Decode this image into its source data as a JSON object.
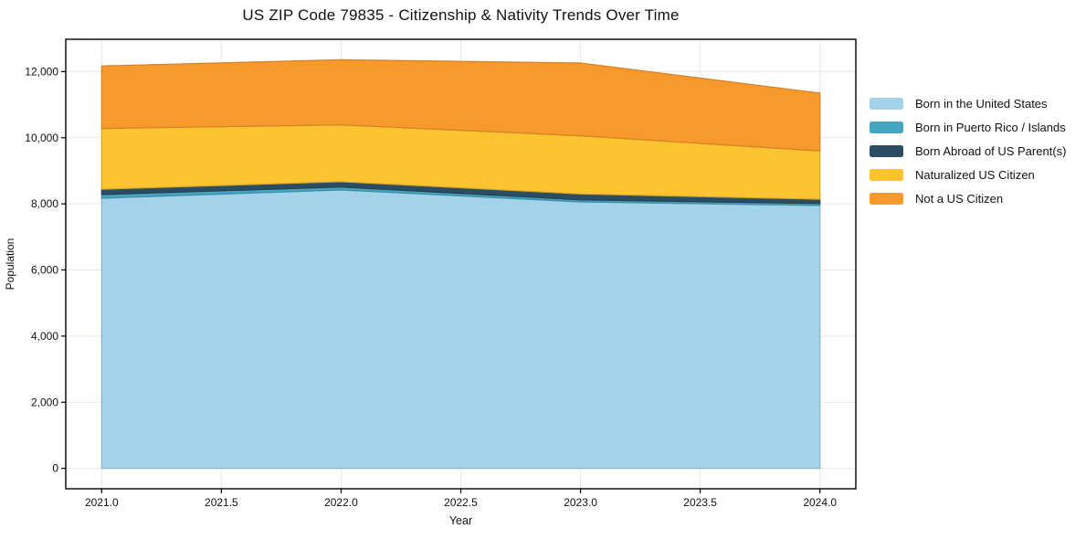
{
  "figure": {
    "background": "#ffffff"
  },
  "chart_data": {
    "type": "area",
    "stacked": true,
    "title": "US ZIP Code 79835 - Citizenship & Nativity Trends Over Time",
    "xlabel": "Year",
    "ylabel": "Population",
    "x": [
      2021,
      2022,
      2023,
      2024
    ],
    "series": [
      {
        "name": "Born in the United States",
        "color": "#a3d3ea",
        "values": [
          8170,
          8420,
          8060,
          7950
        ]
      },
      {
        "name": "Born in Puerto Rico / Islands",
        "color": "#46a5c1",
        "values": [
          110,
          90,
          60,
          60
        ]
      },
      {
        "name": "Born Abroad of US Parent(s)",
        "color": "#2a4d63",
        "values": [
          160,
          160,
          180,
          130
        ]
      },
      {
        "name": "Naturalized US Citizen",
        "color": "#fdc330",
        "values": [
          1840,
          1720,
          1760,
          1460
        ]
      },
      {
        "name": "Not a US Citizen",
        "color": "#f8992c",
        "values": [
          1890,
          1970,
          2200,
          1750
        ]
      }
    ],
    "stack_totals": [
      12170,
      12360,
      12260,
      11350
    ],
    "xticks": [
      2021.0,
      2021.5,
      2022.0,
      2022.5,
      2023.0,
      2023.5,
      2024.0
    ],
    "xtick_labels": [
      "2021.0",
      "2021.5",
      "2022.0",
      "2022.5",
      "2023.0",
      "2023.5",
      "2024.0"
    ],
    "yticks": [
      0,
      2000,
      4000,
      6000,
      8000,
      10000,
      12000
    ],
    "ytick_labels": [
      "0",
      "2,000",
      "4,000",
      "6,000",
      "8,000",
      "10,000",
      "12,000"
    ],
    "xlim": [
      2020.85,
      2024.15
    ],
    "ylim": [
      -618,
      12978
    ],
    "grid": true,
    "legend_position": "right"
  },
  "colors": {
    "grid": "#e9e9e9",
    "axis": "#000000",
    "text": "#111111"
  }
}
